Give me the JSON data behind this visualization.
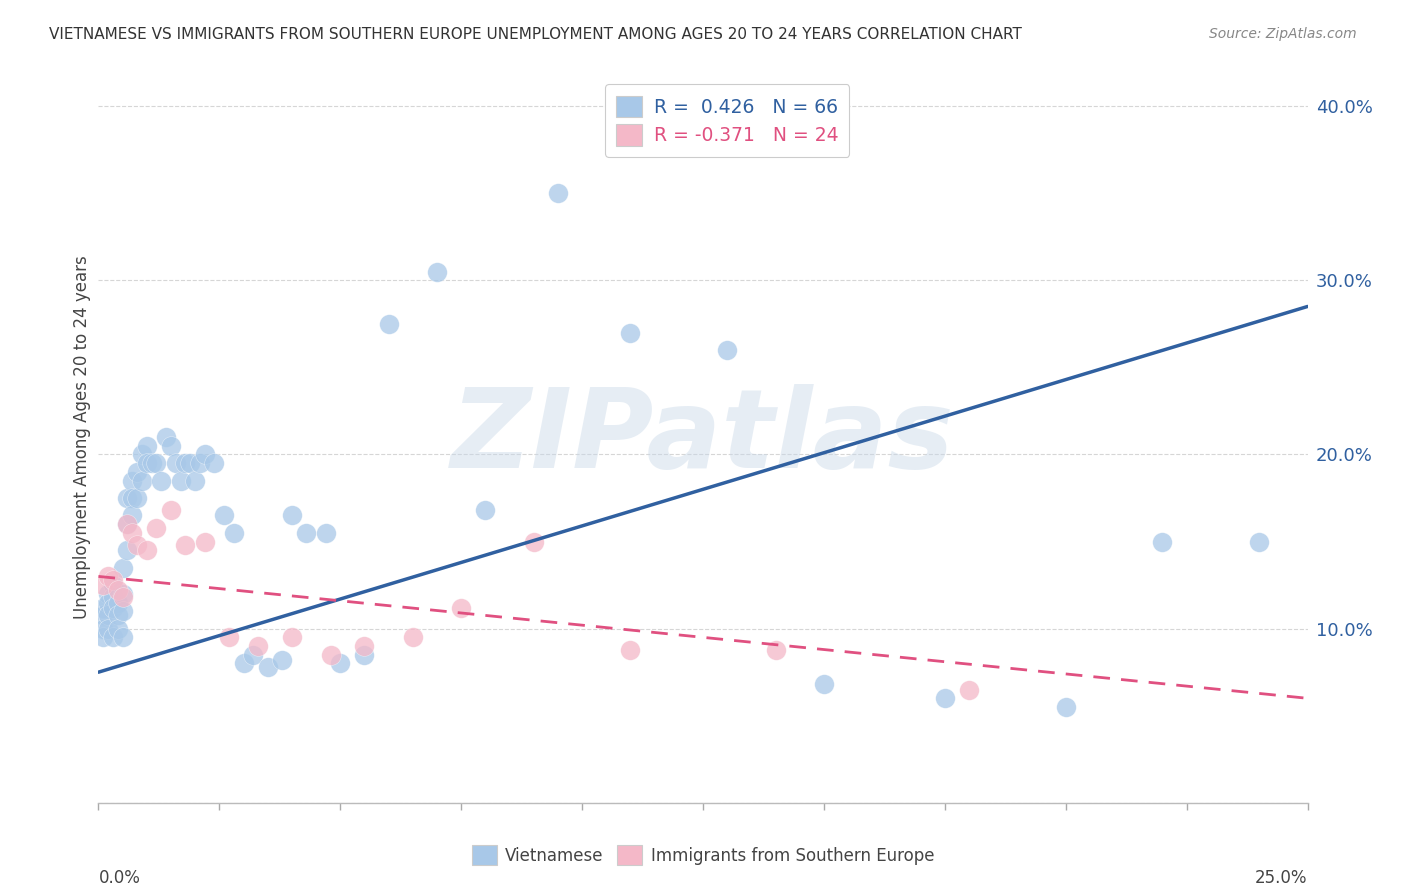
{
  "title": "VIETNAMESE VS IMMIGRANTS FROM SOUTHERN EUROPE UNEMPLOYMENT AMONG AGES 20 TO 24 YEARS CORRELATION CHART",
  "source": "Source: ZipAtlas.com",
  "ylabel": "Unemployment Among Ages 20 to 24 years",
  "legend_r1": "R =  0.426   N = 66",
  "legend_r2": "R = -0.371   N = 24",
  "legend_label1": "Vietnamese",
  "legend_label2": "Immigrants from Southern Europe",
  "color_blue": "#a8c8e8",
  "color_pink": "#f4b8c8",
  "line_color_blue": "#3060a0",
  "line_color_pink": "#e05080",
  "background_color": "#ffffff",
  "grid_color": "#cccccc",
  "watermark_text": "ZIPatlas",
  "xlim": [
    0.0,
    0.25
  ],
  "ylim": [
    0.0,
    0.42
  ],
  "blue_line_x0": 0.0,
  "blue_line_y0": 0.075,
  "blue_line_x1": 0.25,
  "blue_line_y1": 0.285,
  "pink_line_x0": 0.0,
  "pink_line_y0": 0.13,
  "pink_line_x1": 0.25,
  "pink_line_y1": 0.06,
  "blue_x": [
    0.001,
    0.001,
    0.001,
    0.001,
    0.002,
    0.002,
    0.002,
    0.002,
    0.003,
    0.003,
    0.003,
    0.003,
    0.004,
    0.004,
    0.004,
    0.005,
    0.005,
    0.005,
    0.005,
    0.006,
    0.006,
    0.006,
    0.007,
    0.007,
    0.007,
    0.008,
    0.008,
    0.009,
    0.009,
    0.01,
    0.01,
    0.011,
    0.012,
    0.013,
    0.014,
    0.015,
    0.016,
    0.017,
    0.018,
    0.019,
    0.02,
    0.021,
    0.022,
    0.024,
    0.026,
    0.028,
    0.03,
    0.032,
    0.035,
    0.038,
    0.04,
    0.043,
    0.047,
    0.05,
    0.055,
    0.06,
    0.07,
    0.08,
    0.095,
    0.11,
    0.13,
    0.15,
    0.175,
    0.2,
    0.22,
    0.24
  ],
  "blue_y": [
    0.112,
    0.108,
    0.1,
    0.095,
    0.12,
    0.115,
    0.108,
    0.1,
    0.125,
    0.118,
    0.112,
    0.095,
    0.115,
    0.108,
    0.1,
    0.135,
    0.12,
    0.11,
    0.095,
    0.175,
    0.16,
    0.145,
    0.185,
    0.175,
    0.165,
    0.19,
    0.175,
    0.2,
    0.185,
    0.205,
    0.195,
    0.195,
    0.195,
    0.185,
    0.21,
    0.205,
    0.195,
    0.185,
    0.195,
    0.195,
    0.185,
    0.195,
    0.2,
    0.195,
    0.165,
    0.155,
    0.08,
    0.085,
    0.078,
    0.082,
    0.165,
    0.155,
    0.155,
    0.08,
    0.085,
    0.275,
    0.305,
    0.168,
    0.35,
    0.27,
    0.26,
    0.068,
    0.06,
    0.055,
    0.15,
    0.15
  ],
  "pink_x": [
    0.001,
    0.002,
    0.003,
    0.004,
    0.005,
    0.006,
    0.007,
    0.008,
    0.01,
    0.012,
    0.015,
    0.018,
    0.022,
    0.027,
    0.033,
    0.04,
    0.048,
    0.055,
    0.065,
    0.075,
    0.09,
    0.11,
    0.14,
    0.18
  ],
  "pink_y": [
    0.125,
    0.13,
    0.128,
    0.122,
    0.118,
    0.16,
    0.155,
    0.148,
    0.145,
    0.158,
    0.168,
    0.148,
    0.15,
    0.095,
    0.09,
    0.095,
    0.085,
    0.09,
    0.095,
    0.112,
    0.15,
    0.088,
    0.088,
    0.065
  ]
}
